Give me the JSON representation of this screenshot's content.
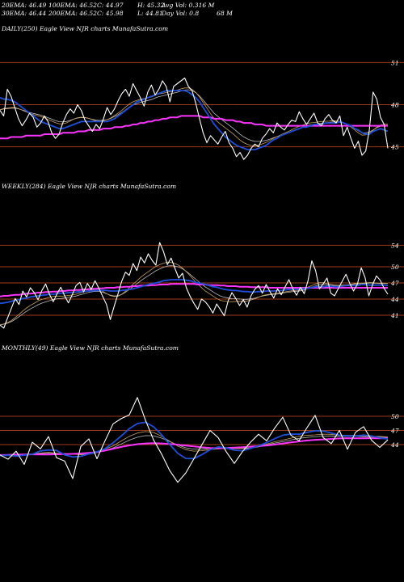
{
  "header": {
    "row1": [
      "20EMA: 46.49",
      "100EMA: 46.52",
      "C: 44.97",
      "H: 45.32",
      "Avg Vol: 0.316  M"
    ],
    "row2": [
      "30EMA: 46.44",
      "200EMA: 46.52",
      "C: 45.98",
      "L: 44.81",
      "Day Vol: 0.8",
      "68  M"
    ]
  },
  "colors": {
    "background": "#000000",
    "price": "#ffffff",
    "ema_fast": "#1f4fd8",
    "ema_slow": "#ff33ff",
    "ema_mid": "#c8a060",
    "ema_grey": "#bbbbbb",
    "level_line": "#9b3a1a"
  },
  "chart_data": [
    {
      "type": "line",
      "title": "DAILY(250) Eagle  View  NJR charts MunafaSutra.com",
      "y_ticks": [
        51,
        48,
        45
      ],
      "ylim": [
        43.6,
        52.0
      ],
      "levels": [
        51,
        48,
        45
      ],
      "price": [
        47.6,
        47.2,
        49.1,
        48.6,
        47.8,
        47.0,
        46.5,
        46.9,
        47.4,
        47.1,
        46.4,
        46.7,
        47.2,
        46.8,
        46.0,
        45.6,
        45.9,
        46.7,
        47.3,
        47.7,
        47.4,
        48.0,
        47.6,
        46.9,
        46.5,
        46.1,
        46.6,
        46.3,
        47.0,
        47.8,
        47.3,
        47.7,
        48.3,
        48.8,
        49.1,
        48.6,
        49.5,
        49.0,
        48.5,
        47.9,
        48.9,
        49.4,
        48.7,
        49.1,
        49.7,
        49.3,
        48.2,
        49.3,
        49.5,
        49.7,
        49.9,
        49.3,
        49.0,
        48.1,
        47.0,
        46.0,
        45.3,
        45.8,
        45.5,
        45.2,
        45.7,
        46.1,
        45.3,
        44.9,
        44.3,
        44.6,
        44.1,
        44.4,
        44.9,
        45.2,
        45.0,
        45.6,
        45.9,
        46.3,
        46.0,
        46.7,
        46.4,
        46.2,
        46.6,
        46.9,
        46.8,
        47.5,
        47.0,
        46.6,
        47.0,
        47.4,
        46.7,
        46.5,
        47.0,
        47.3,
        46.9,
        46.7,
        47.2,
        45.8,
        46.4,
        45.6,
        44.9,
        45.4,
        44.4,
        44.7,
        46.2,
        48.9,
        48.4,
        47.1,
        46.6,
        44.9
      ],
      "ema_fast": [
        48.5,
        48.4,
        48.4,
        48.3,
        48.2,
        48.0,
        47.8,
        47.6,
        47.4,
        47.2,
        47.0,
        46.8,
        46.7,
        46.6,
        46.5,
        46.4,
        46.3,
        46.3,
        46.4,
        46.5,
        46.6,
        46.7,
        46.8,
        46.8,
        46.8,
        46.8,
        46.8,
        46.8,
        46.8,
        46.8,
        46.9,
        47.0,
        47.2,
        47.4,
        47.6,
        47.8,
        48.0,
        48.2,
        48.3,
        48.4,
        48.5,
        48.6,
        48.7,
        48.8,
        48.9,
        49.0,
        49.0,
        49.0,
        49.0,
        49.0,
        49.0,
        48.9,
        48.7,
        48.5,
        48.2,
        47.8,
        47.4,
        47.0,
        46.6,
        46.3,
        46.0,
        45.7,
        45.5,
        45.3,
        45.1,
        45.0,
        44.9,
        44.8,
        44.8,
        44.8,
        44.9,
        45.0,
        45.1,
        45.3,
        45.5,
        45.6,
        45.8,
        45.9,
        46.0,
        46.1,
        46.2,
        46.3,
        46.4,
        46.4,
        46.5,
        46.6,
        46.6,
        46.6,
        46.7,
        46.7,
        46.7,
        46.7,
        46.8,
        46.7,
        46.6,
        46.5,
        46.3,
        46.2,
        46.0,
        45.9,
        45.9,
        46.1,
        46.2,
        46.3,
        46.2,
        46.1
      ],
      "ema_slow": [
        45.6,
        45.6,
        45.6,
        45.7,
        45.7,
        45.7,
        45.7,
        45.8,
        45.8,
        45.8,
        45.8,
        45.8,
        45.9,
        45.9,
        45.9,
        45.9,
        45.9,
        46.0,
        46.0,
        46.0,
        46.0,
        46.1,
        46.1,
        46.1,
        46.2,
        46.2,
        46.2,
        46.2,
        46.3,
        46.3,
        46.3,
        46.4,
        46.4,
        46.4,
        46.5,
        46.5,
        46.6,
        46.6,
        46.7,
        46.7,
        46.8,
        46.8,
        46.9,
        46.9,
        47.0,
        47.0,
        47.1,
        47.1,
        47.1,
        47.2,
        47.2,
        47.2,
        47.2,
        47.2,
        47.2,
        47.1,
        47.1,
        47.1,
        47.0,
        47.0,
        47.0,
        46.9,
        46.9,
        46.9,
        46.8,
        46.8,
        46.7,
        46.7,
        46.7,
        46.6,
        46.6,
        46.6,
        46.5,
        46.5,
        46.5,
        46.5,
        46.5,
        46.5,
        46.5,
        46.5,
        46.5,
        46.5,
        46.5,
        46.5,
        46.5,
        46.5,
        46.5,
        46.5,
        46.5,
        46.5,
        46.5,
        46.5,
        46.5,
        46.5,
        46.5,
        46.5,
        46.5,
        46.5,
        46.5,
        46.5,
        46.5,
        46.5,
        46.5,
        46.5,
        46.5,
        46.5
      ]
    },
    {
      "type": "line",
      "title": "WEEKLY(284) Eagle  View  NJR charts MunafaSutra.com",
      "y_ticks": [
        54,
        50,
        47,
        44,
        41
      ],
      "ylim": [
        38.0,
        57.5
      ],
      "levels": [
        54,
        50,
        47,
        44,
        41
      ],
      "price": [
        39.2,
        38.6,
        40.5,
        42.3,
        44.1,
        43.0,
        45.5,
        44.4,
        46.1,
        45.2,
        43.9,
        45.6,
        46.8,
        44.9,
        43.5,
        45.0,
        46.2,
        44.6,
        43.3,
        44.8,
        46.5,
        47.1,
        45.3,
        46.9,
        45.8,
        47.4,
        46.0,
        44.5,
        43.0,
        40.2,
        42.6,
        44.9,
        47.3,
        49.0,
        48.4,
        50.6,
        49.3,
        51.8,
        50.7,
        52.4,
        51.2,
        50.3,
        54.5,
        52.8,
        50.4,
        51.6,
        49.7,
        47.9,
        48.8,
        46.1,
        44.5,
        43.2,
        42.1,
        44.0,
        43.5,
        42.6,
        41.4,
        43.1,
        42.0,
        40.9,
        43.7,
        45.2,
        44.1,
        42.8,
        43.9,
        42.5,
        44.6,
        45.8,
        46.5,
        45.1,
        46.7,
        45.4,
        44.2,
        45.9,
        44.8,
        46.3,
        47.6,
        45.9,
        44.7,
        46.2,
        45.0,
        47.4,
        51.1,
        49.3,
        45.9,
        46.8,
        47.9,
        45.1,
        44.6,
        46.0,
        47.3,
        48.6,
        46.9,
        45.5,
        46.8,
        49.8,
        48.0,
        44.6,
        46.7,
        48.3,
        47.5,
        46.0,
        44.9
      ],
      "ema_fast": [
        43.2,
        43.3,
        43.4,
        43.6,
        43.8,
        43.9,
        44.1,
        44.2,
        44.4,
        44.5,
        44.6,
        44.7,
        44.8,
        44.9,
        44.9,
        45.0,
        45.1,
        45.1,
        45.2,
        45.2,
        45.3,
        45.4,
        45.4,
        45.5,
        45.5,
        45.6,
        45.6,
        45.6,
        45.6,
        45.5,
        45.5,
        45.5,
        45.6,
        45.7,
        45.8,
        45.9,
        46.1,
        46.3,
        46.5,
        46.7,
        46.9,
        47.0,
        47.2,
        47.4,
        47.5,
        47.6,
        47.6,
        47.6,
        47.6,
        47.5,
        47.4,
        47.2,
        47.0,
        46.9,
        46.7,
        46.5,
        46.3,
        46.2,
        46.0,
        45.8,
        45.7,
        45.6,
        45.6,
        45.5,
        45.4,
        45.4,
        45.3,
        45.3,
        45.4,
        45.4,
        45.5,
        45.5,
        45.5,
        45.6,
        45.6,
        45.7,
        45.8,
        45.8,
        45.8,
        45.9,
        45.9,
        46.0,
        46.2,
        46.3,
        46.3,
        46.3,
        46.4,
        46.4,
        46.3,
        46.3,
        46.4,
        46.5,
        46.5,
        46.5,
        46.5,
        46.7,
        46.7,
        46.6,
        46.6,
        46.6,
        46.6,
        46.6,
        46.5
      ],
      "ema_slow": [
        44.5,
        44.6,
        44.6,
        44.7,
        44.8,
        44.8,
        44.9,
        45.0,
        45.0,
        45.1,
        45.2,
        45.2,
        45.3,
        45.3,
        45.4,
        45.4,
        45.5,
        45.5,
        45.6,
        45.6,
        45.7,
        45.7,
        45.8,
        45.8,
        45.9,
        45.9,
        46.0,
        46.0,
        46.1,
        46.1,
        46.1,
        46.2,
        46.2,
        46.3,
        46.3,
        46.4,
        46.4,
        46.5,
        46.5,
        46.5,
        46.6,
        46.6,
        46.7,
        46.7,
        46.7,
        46.8,
        46.8,
        46.8,
        46.8,
        46.8,
        46.8,
        46.8,
        46.7,
        46.7,
        46.7,
        46.6,
        46.6,
        46.6,
        46.5,
        46.5,
        46.4,
        46.4,
        46.4,
        46.3,
        46.3,
        46.3,
        46.2,
        46.2,
        46.2,
        46.2,
        46.2,
        46.1,
        46.1,
        46.1,
        46.1,
        46.1,
        46.1,
        46.1,
        46.1,
        46.1,
        46.1,
        46.1,
        46.1,
        46.1,
        46.1,
        46.1,
        46.1,
        46.1,
        46.1,
        46.1,
        46.1,
        46.1,
        46.1,
        46.1,
        46.1,
        46.1,
        46.1,
        46.1,
        46.1,
        46.1,
        46.1,
        46.1,
        46.1
      ]
    },
    {
      "type": "line",
      "title": "MONTHLY(49) Eagle  View  NJR charts MunafaSutra.com",
      "y_ticks": [
        50,
        47,
        44
      ],
      "ylim": [
        32.0,
        56.0
      ],
      "levels": [
        50,
        47,
        44
      ],
      "price": [
        41.8,
        40.9,
        42.6,
        39.8,
        44.5,
        43.1,
        45.7,
        41.2,
        40.5,
        36.8,
        43.6,
        45.2,
        41.0,
        44.8,
        48.4,
        49.5,
        50.3,
        54.0,
        49.2,
        45.0,
        42.0,
        38.5,
        36.0,
        38.0,
        41.0,
        44.0,
        47.0,
        45.5,
        42.5,
        40.0,
        42.5,
        44.5,
        46.2,
        44.8,
        47.5,
        49.8,
        46.0,
        44.8,
        47.6,
        50.2,
        45.5,
        44.2,
        47.0,
        43.0,
        46.6,
        47.8,
        44.9,
        43.4,
        45.0
      ]
    }
  ]
}
